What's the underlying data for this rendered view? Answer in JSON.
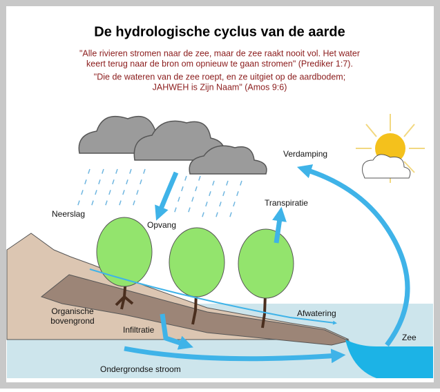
{
  "header": {
    "title": "De hydrologische cyclus van de aarde",
    "quote_1": [
      "\"Alle rivieren stromen naar de zee, maar de zee raakt nooit vol. Het water",
      "keert terug naar de bron om opnieuw te gaan stromen\" (Prediker 1:7)."
    ],
    "quote_2": [
      "\"Die de wateren van de zee roept, en ze uitgiet op de aardbodem;",
      "JAHWEH is Zijn Naam\" (Amos 9:6)"
    ]
  },
  "labels": {
    "verdamping": "Verdamping",
    "transpiratie": "Transpiratie",
    "neerslag": "Neerslag",
    "opvang": "Opvang",
    "organische_bovengrond": [
      "Organische",
      "bovengrond"
    ],
    "infiltratie": "Infiltratie",
    "afwatering": "Afwatering",
    "zee": "Zee",
    "ondergrondse_stroom": "Ondergrondse stroom"
  }
}
